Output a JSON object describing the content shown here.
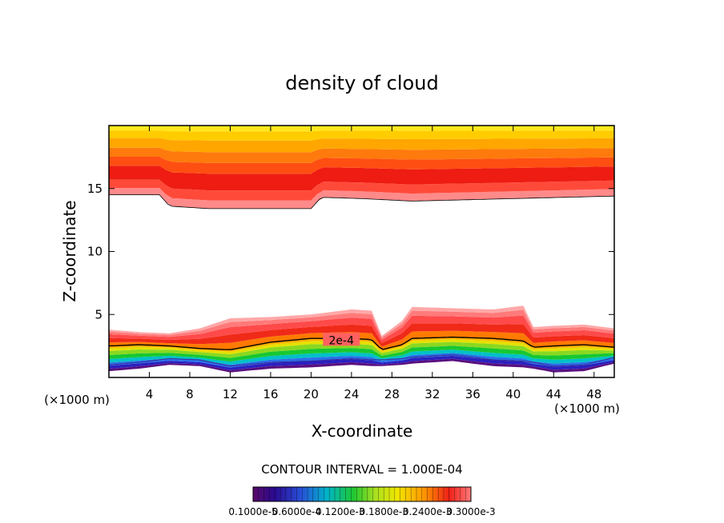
{
  "chart_data": {
    "type": "heatmap",
    "title": "density of cloud",
    "xlabel": "X-coordinate",
    "ylabel": "Z-coordinate",
    "x_unit_left": "(×1000 m)",
    "x_unit_right": "(×1000 m)",
    "xlim": [
      0,
      50
    ],
    "ylim": [
      0,
      20
    ],
    "x_ticks": [
      "4",
      "8",
      "12",
      "16",
      "20",
      "24",
      "28",
      "32",
      "36",
      "40",
      "44",
      "48"
    ],
    "x_tick_values": [
      4,
      8,
      12,
      16,
      20,
      24,
      28,
      32,
      36,
      40,
      44,
      48
    ],
    "y_ticks": [
      "5",
      "10",
      "15"
    ],
    "y_tick_values": [
      5,
      10,
      15
    ],
    "contour_label": "2e-4",
    "contour_label_position": [
      23,
      2.9
    ],
    "contour_interval_text": "CONTOUR INTERVAL = 1.000E-04",
    "colorbar_labels": [
      "0.1000e-5",
      "0.6000e-4",
      "0.1200e-3",
      "0.1800e-3",
      "0.2400e-3",
      "0.3000e-3"
    ],
    "colorbar_range": [
      1e-06,
      0.0003
    ],
    "regions": [
      {
        "name": "upper cloud layer",
        "x": [
          0,
          5,
          6,
          10,
          20,
          21,
          25,
          30,
          40,
          50
        ],
        "z_base": [
          14.5,
          14.5,
          13.6,
          13.4,
          13.4,
          14.3,
          14.2,
          14.0,
          14.2,
          14.4
        ],
        "z_top": [
          20,
          20,
          20,
          20,
          20,
          20,
          20,
          20,
          20,
          20
        ]
      },
      {
        "name": "lower cloud layer",
        "x": [
          0,
          3,
          6,
          9,
          12,
          16,
          20,
          24,
          26,
          27,
          29,
          30,
          34,
          38,
          41,
          42,
          44,
          47,
          50
        ],
        "z_base": [
          0.5,
          0.7,
          1.0,
          0.9,
          0.4,
          0.7,
          0.8,
          1.0,
          0.9,
          0.9,
          1.0,
          1.1,
          1.3,
          0.9,
          0.8,
          0.7,
          0.4,
          0.5,
          1.1
        ],
        "z_2e4_contour": [
          2.5,
          2.6,
          2.5,
          2.3,
          2.2,
          2.8,
          3.1,
          3.1,
          3.0,
          2.2,
          2.6,
          3.1,
          3.2,
          3.1,
          2.9,
          2.4,
          2.5,
          2.6,
          2.4
        ],
        "z_top": [
          3.8,
          3.6,
          3.5,
          3.9,
          4.7,
          4.8,
          5.0,
          5.4,
          5.3,
          3.3,
          4.5,
          5.6,
          5.5,
          5.4,
          5.7,
          4.0,
          4.1,
          4.2,
          3.9
        ]
      }
    ]
  }
}
